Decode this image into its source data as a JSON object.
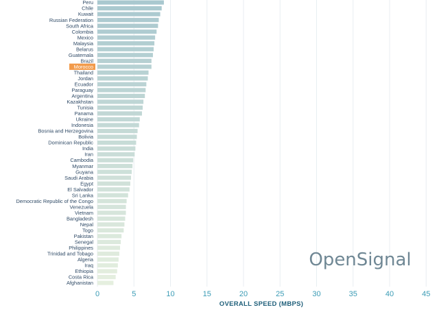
{
  "brand": {
    "name": "OpenSignal"
  },
  "chart_data": {
    "type": "bar",
    "orientation": "horizontal",
    "xlabel": "OVERALL SPEED (MBPS)",
    "xlim": [
      0,
      45
    ],
    "xticks": [
      0,
      5,
      10,
      15,
      20,
      25,
      30,
      35,
      40,
      45
    ],
    "grid": true,
    "highlighted_category": "Morocco",
    "colors": {
      "bar_top": "#a9c8cf",
      "bar_bottom": "#e5efdf",
      "highlight": "#f29a4a"
    },
    "categories": [
      "Peru",
      "Chile",
      "Kuwait",
      "Russian Federation",
      "South Africa",
      "Colombia",
      "Mexico",
      "Malaysia",
      "Belarus",
      "Guatemala",
      "Brazil",
      "Morocco",
      "Thailand",
      "Jordan",
      "Ecuador",
      "Paraguay",
      "Argentina",
      "Kazakhstan",
      "Tunisia",
      "Panama",
      "Ukraine",
      "Indonesia",
      "Bosnia and Herzegovina",
      "Bolivia",
      "Dominican Republic",
      "India",
      "Iran",
      "Cambodia",
      "Myanmar",
      "Guyana",
      "Saudi Arabia",
      "Egypt",
      "El Salvador",
      "Sri Lanka",
      "Democratic Republic of the Congo",
      "Venezuela",
      "Vietnam",
      "Bangladesh",
      "Nepal",
      "Togo",
      "Pakistan",
      "Senegal",
      "Philippines",
      "Trinidad and Tobago",
      "Algeria",
      "Iraq",
      "Ethiopia",
      "Costa Rica",
      "Afghanistan"
    ],
    "values": [
      9.1,
      8.8,
      8.6,
      8.4,
      8.3,
      8.1,
      7.9,
      7.8,
      7.7,
      7.6,
      7.4,
      7.4,
      7.0,
      6.9,
      6.7,
      6.6,
      6.5,
      6.3,
      6.2,
      6.1,
      5.8,
      5.7,
      5.5,
      5.4,
      5.3,
      5.2,
      5.1,
      4.9,
      4.8,
      4.7,
      4.6,
      4.5,
      4.4,
      4.2,
      4.0,
      3.9,
      3.9,
      3.8,
      3.7,
      3.6,
      3.3,
      3.2,
      3.1,
      3.0,
      2.9,
      2.8,
      2.7,
      2.5,
      2.2
    ]
  }
}
